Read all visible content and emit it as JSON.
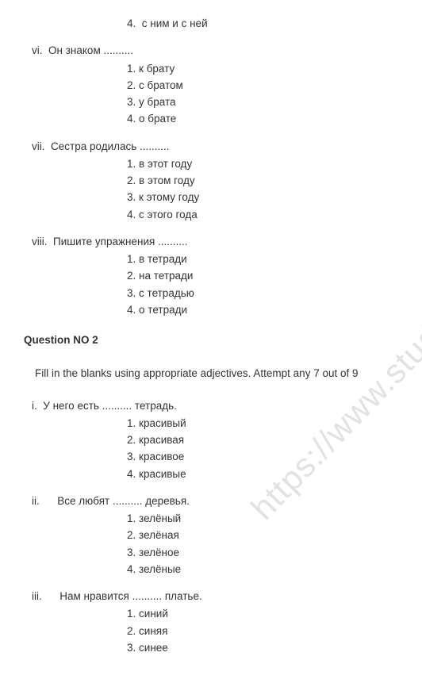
{
  "watermark": "https://www.studiestoday.c",
  "orphan": {
    "num": "4.",
    "text": "с ним и с ней"
  },
  "q1": [
    {
      "roman": "vi.",
      "prompt": "Он знаком ..........",
      "opts": [
        {
          "n": "1.",
          "t": "к брату"
        },
        {
          "n": "2.",
          "t": "с братом"
        },
        {
          "n": "3.",
          "t": "у брата"
        },
        {
          "n": "4.",
          "t": "о брате"
        }
      ]
    },
    {
      "roman": "vii.",
      "prompt": "Сестра родилась ..........",
      "opts": [
        {
          "n": "1.",
          "t": "в этот году"
        },
        {
          "n": "2.",
          "t": "в этом году"
        },
        {
          "n": "3.",
          "t": "к этому году"
        },
        {
          "n": "4.",
          "t": "с этого года"
        }
      ]
    },
    {
      "roman": "viii.",
      "prompt": "Пишите упражнения ..........",
      "opts": [
        {
          "n": "1.",
          "t": "в тетради"
        },
        {
          "n": "2.",
          "t": "на тетради"
        },
        {
          "n": "3.",
          "t": "с тетрадью"
        },
        {
          "n": "4.",
          "t": "о тетради"
        }
      ]
    }
  ],
  "section2_title": "Question NO 2",
  "section2_instruction": "Fill in the blanks using appropriate adjectives. Attempt any 7 out of 9",
  "q2": [
    {
      "roman": "i.",
      "prompt": "У него есть .......... тетрадь.",
      "opts": [
        {
          "n": "1.",
          "t": "красивый"
        },
        {
          "n": "2.",
          "t": "красивая"
        },
        {
          "n": "3.",
          "t": "красивое"
        },
        {
          "n": "4.",
          "t": "красивые"
        }
      ]
    },
    {
      "roman": "ii.",
      "prompt": "Все любят .......... деревья.",
      "pad": true,
      "opts": [
        {
          "n": "1.",
          "t": "зелёный"
        },
        {
          "n": "2.",
          "t": "зелёная"
        },
        {
          "n": "3.",
          "t": "зелёное"
        },
        {
          "n": "4.",
          "t": "зелёные"
        }
      ]
    },
    {
      "roman": "iii.",
      "prompt": "Нам нравится .......... платье.",
      "pad": true,
      "opts": [
        {
          "n": "1.",
          "t": "синий"
        },
        {
          "n": "2.",
          "t": "синяя"
        },
        {
          "n": "3.",
          "t": "синее"
        }
      ]
    }
  ]
}
